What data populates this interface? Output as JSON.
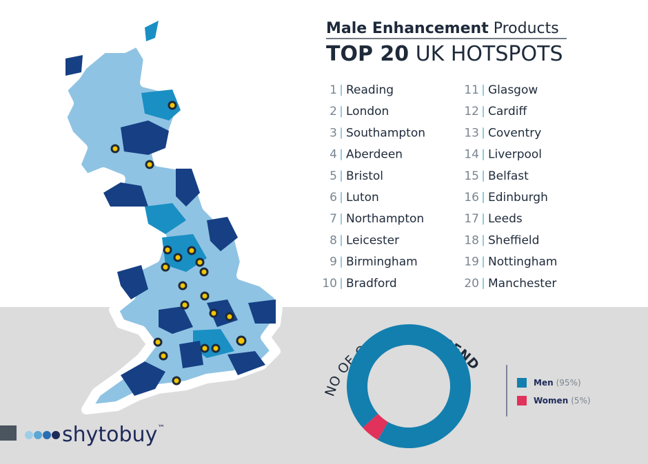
{
  "header": {
    "title_bold": "Male Enhancement",
    "title_light": "Products",
    "subtitle_bold": "TOP 20",
    "subtitle_light": "UK HOTSPOTS"
  },
  "hotspots": [
    {
      "rank": 1,
      "city": "Reading"
    },
    {
      "rank": 2,
      "city": "London"
    },
    {
      "rank": 3,
      "city": "Southampton"
    },
    {
      "rank": 4,
      "city": "Aberdeen"
    },
    {
      "rank": 5,
      "city": "Bristol"
    },
    {
      "rank": 6,
      "city": "Luton"
    },
    {
      "rank": 7,
      "city": "Northampton"
    },
    {
      "rank": 8,
      "city": "Leicester"
    },
    {
      "rank": 9,
      "city": "Birmingham"
    },
    {
      "rank": 10,
      "city": "Bradford"
    },
    {
      "rank": 11,
      "city": "Glasgow"
    },
    {
      "rank": 12,
      "city": "Cardiff"
    },
    {
      "rank": 13,
      "city": "Coventry"
    },
    {
      "rank": 14,
      "city": "Liverpool"
    },
    {
      "rank": 15,
      "city": "Belfast"
    },
    {
      "rank": 16,
      "city": "Edinburgh"
    },
    {
      "rank": 17,
      "city": "Leeds"
    },
    {
      "rank": 18,
      "city": "Sheffield"
    },
    {
      "rank": 19,
      "city": "Nottingham"
    },
    {
      "rank": 20,
      "city": "Manchester"
    }
  ],
  "gender_chart": {
    "type": "donut",
    "title_light": "NO OF ORDERS",
    "title_bold": "BY GENDER",
    "categories": [
      "Men",
      "Women"
    ],
    "values": [
      95,
      5
    ],
    "value_labels": [
      "(95%)",
      "(5%)"
    ],
    "colors": [
      "#137fae",
      "#e0325a"
    ]
  },
  "brand": {
    "name": "shytobuy",
    "mark": "™"
  }
}
